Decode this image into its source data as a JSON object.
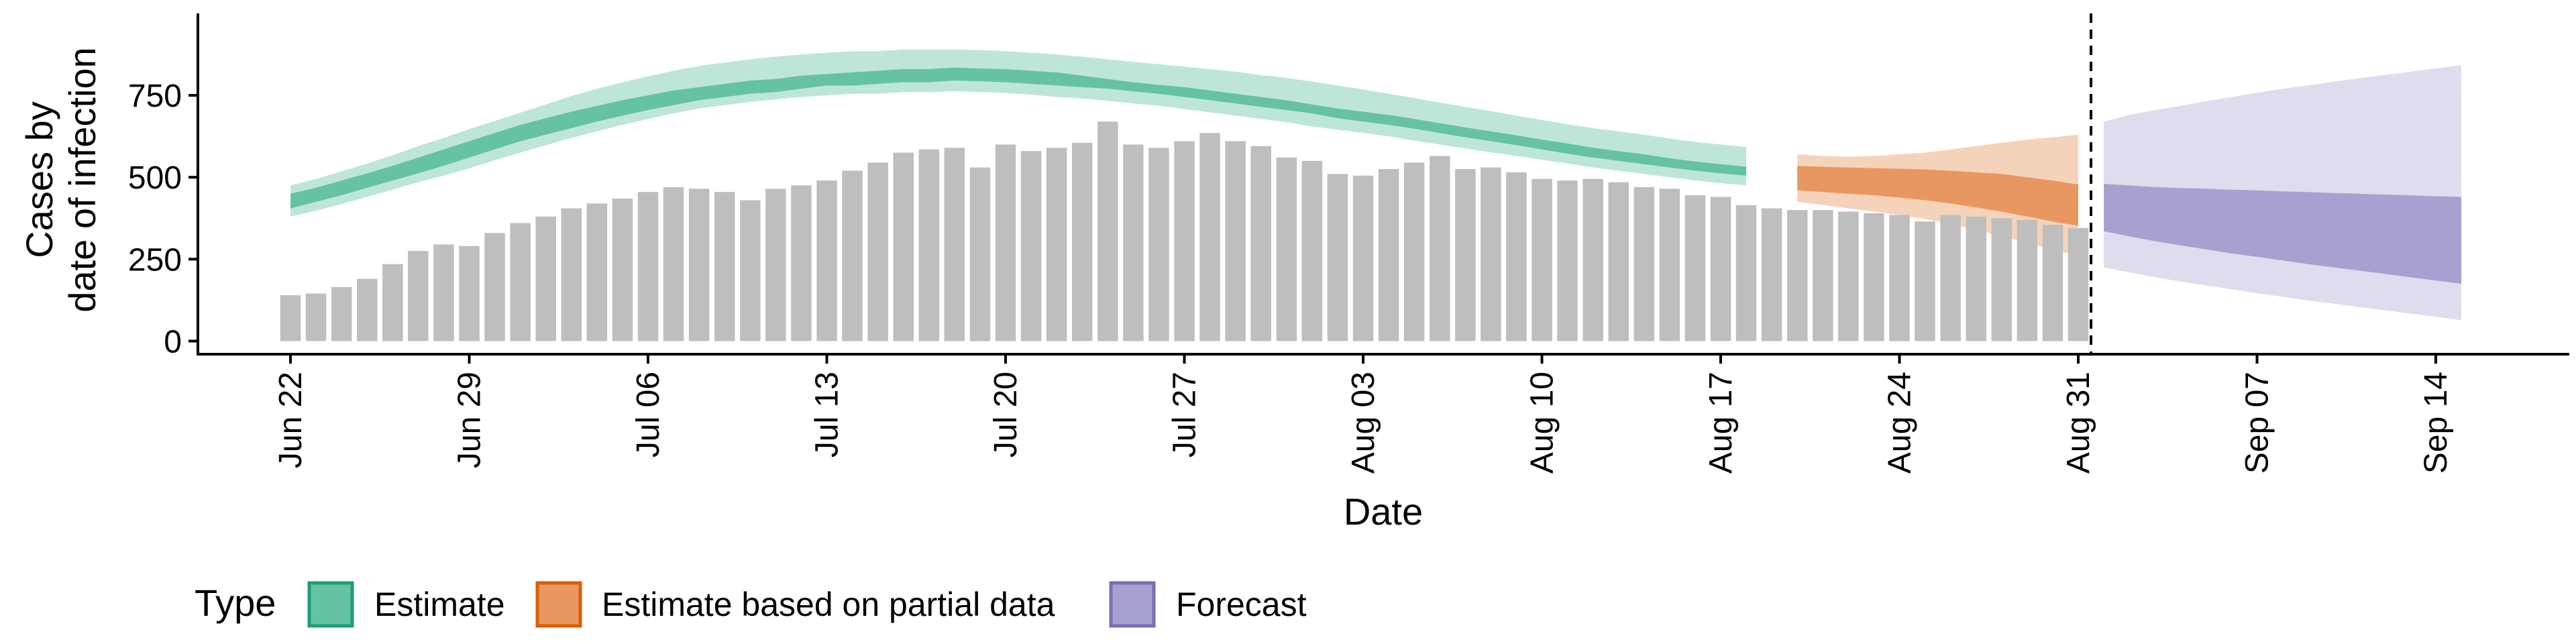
{
  "chart_data": {
    "type": "bar",
    "xlabel": "Date",
    "ylabel_lines": [
      "Cases by",
      "date of infection"
    ],
    "ylim": [
      -40,
      1000
    ],
    "y_ticks": [
      0,
      250,
      500,
      750
    ],
    "x_ticks": [
      {
        "day": 0,
        "label": "Jun 22"
      },
      {
        "day": 7,
        "label": "Jun 29"
      },
      {
        "day": 14,
        "label": "Jul 06"
      },
      {
        "day": 21,
        "label": "Jul 13"
      },
      {
        "day": 28,
        "label": "Jul 20"
      },
      {
        "day": 35,
        "label": "Jul 27"
      },
      {
        "day": 42,
        "label": "Aug 03"
      },
      {
        "day": 49,
        "label": "Aug 10"
      },
      {
        "day": 56,
        "label": "Aug 17"
      },
      {
        "day": 63,
        "label": "Aug 24"
      },
      {
        "day": 70,
        "label": "Aug 31"
      },
      {
        "day": 77,
        "label": "Sep 07"
      },
      {
        "day": 84,
        "label": "Sep 14"
      }
    ],
    "first_date": "Jun 22",
    "xlim": [
      -3.5,
      88.5
    ],
    "reported_cases": [
      140,
      145,
      165,
      190,
      235,
      275,
      295,
      290,
      330,
      360,
      380,
      405,
      420,
      435,
      455,
      470,
      465,
      455,
      430,
      465,
      475,
      490,
      520,
      545,
      575,
      585,
      590,
      530,
      600,
      580,
      590,
      605,
      670,
      600,
      590,
      610,
      635,
      610,
      595,
      560,
      550,
      510,
      505,
      525,
      545,
      565,
      525,
      530,
      515,
      495,
      490,
      495,
      485,
      470,
      465,
      445,
      440,
      415,
      405,
      400,
      400,
      395,
      390,
      385,
      365,
      385,
      380,
      375,
      370,
      355,
      345
    ],
    "series": [
      {
        "name": "Estimate",
        "color_dark": "#66c2a5",
        "color_light": "#bde6d9",
        "start_day": 0,
        "inner_lower": [
          405,
          425,
          445,
          468,
          490,
          512,
          535,
          560,
          585,
          610,
          630,
          650,
          670,
          688,
          705,
          720,
          735,
          745,
          755,
          760,
          770,
          780,
          780,
          785,
          790,
          790,
          795,
          793,
          790,
          785,
          780,
          775,
          770,
          762,
          755,
          745,
          735,
          725,
          715,
          705,
          695,
          680,
          670,
          660,
          648,
          635,
          622,
          610,
          598,
          585,
          572,
          560,
          550,
          540,
          530,
          520,
          512,
          505
        ],
        "inner_upper": [
          450,
          468,
          490,
          512,
          535,
          560,
          585,
          610,
          635,
          660,
          680,
          700,
          718,
          735,
          750,
          765,
          775,
          785,
          795,
          800,
          810,
          815,
          820,
          825,
          830,
          830,
          835,
          832,
          830,
          825,
          820,
          810,
          800,
          790,
          782,
          775,
          765,
          755,
          745,
          735,
          722,
          710,
          700,
          690,
          678,
          665,
          652,
          640,
          628,
          615,
          603,
          590,
          580,
          570,
          558,
          548,
          540,
          532
        ],
        "outer_lower": [
          380,
          398,
          418,
          440,
          462,
          485,
          505,
          527,
          552,
          575,
          598,
          620,
          640,
          660,
          678,
          695,
          710,
          720,
          730,
          738,
          745,
          750,
          755,
          755,
          760,
          760,
          763,
          760,
          757,
          752,
          745,
          740,
          733,
          725,
          718,
          708,
          698,
          688,
          678,
          668,
          655,
          645,
          635,
          625,
          612,
          600,
          588,
          576,
          565,
          553,
          542,
          530,
          520,
          510,
          500,
          490,
          482,
          475
        ],
        "outer_upper": [
          475,
          495,
          518,
          542,
          567,
          595,
          620,
          647,
          672,
          697,
          722,
          748,
          770,
          790,
          808,
          825,
          840,
          850,
          860,
          868,
          875,
          880,
          885,
          885,
          890,
          890,
          890,
          888,
          885,
          880,
          875,
          868,
          860,
          852,
          845,
          838,
          830,
          822,
          812,
          803,
          792,
          780,
          768,
          755,
          742,
          728,
          715,
          702,
          688,
          675,
          662,
          650,
          640,
          630,
          618,
          608,
          600,
          592
        ]
      },
      {
        "name": "Estimate based on partial data",
        "color_dark": "#e99760",
        "color_light": "#f5d3bb",
        "start_day": 59,
        "inner_lower": [
          460,
          455,
          450,
          445,
          438,
          430,
          420,
          408,
          395,
          380,
          365,
          352
        ],
        "inner_upper": [
          535,
          532,
          530,
          528,
          526,
          524,
          520,
          515,
          510,
          500,
          490,
          478
        ],
        "outer_lower": [
          425,
          415,
          405,
          395,
          385,
          372,
          358,
          340,
          320,
          300,
          280,
          260
        ],
        "outer_upper": [
          570,
          565,
          562,
          565,
          570,
          575,
          585,
          595,
          605,
          615,
          622,
          630
        ]
      },
      {
        "name": "Forecast",
        "color_dark": "#a6a1d1",
        "color_light": "#ddddee",
        "start_day": 71,
        "inner_lower": [
          335,
          320,
          305,
          292,
          280,
          268,
          257,
          246,
          235,
          225,
          215,
          205,
          195,
          185,
          175
        ],
        "inner_upper": [
          480,
          475,
          470,
          467,
          465,
          462,
          460,
          457,
          455,
          452,
          450,
          447,
          445,
          442,
          440
        ],
        "outer_lower": [
          225,
          210,
          195,
          182,
          170,
          158,
          146,
          135,
          124,
          114,
          104,
          94,
          84,
          74,
          64
        ],
        "outer_upper": [
          670,
          690,
          705,
          718,
          732,
          745,
          758,
          770,
          780,
          792,
          802,
          812,
          822,
          832,
          842
        ]
      }
    ],
    "bar_color": "#bebebe",
    "vline_day": 70.5,
    "legend": {
      "title": "Type",
      "position": "bottom-left",
      "entries": [
        {
          "label": "Estimate",
          "fill": "#66c2a5",
          "stroke": "#1b9e77"
        },
        {
          "label": "Estimate based on partial data",
          "fill": "#e99760",
          "stroke": "#d95f02"
        },
        {
          "label": "Forecast",
          "fill": "#a6a1d1",
          "stroke": "#7570b3"
        }
      ]
    }
  }
}
